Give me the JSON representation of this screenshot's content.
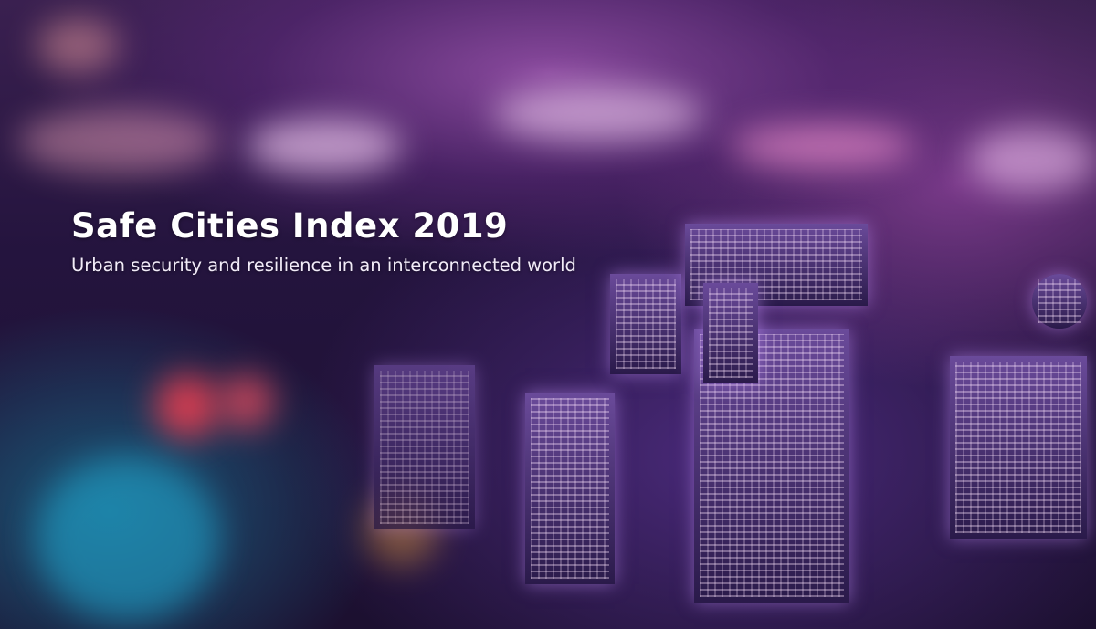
{
  "cover": {
    "title": "Safe Cities Index 2019",
    "subtitle": "Urban security and resilience in an interconnected world"
  },
  "colors": {
    "text": "#ffffff",
    "background": "#24143e",
    "accent": "#8a4a9e"
  }
}
